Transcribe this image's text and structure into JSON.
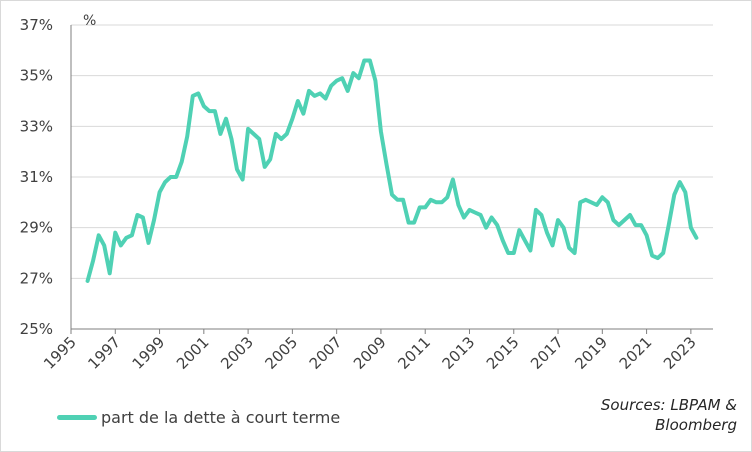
{
  "colors": {
    "series": "#4fd1b4",
    "grid": "#d9d9d9",
    "axis": "#7f7f7f",
    "text": "#404040"
  },
  "chart_data": {
    "type": "line",
    "unit_label": "%",
    "ylim": [
      25,
      37
    ],
    "y_ticks": [
      25,
      27,
      29,
      31,
      33,
      35,
      37
    ],
    "y_tick_labels": [
      "25%",
      "27%",
      "29%",
      "31%",
      "33%",
      "35%",
      "37%"
    ],
    "xlim": [
      1995,
      2024
    ],
    "x_ticks": [
      1995,
      1997,
      1999,
      2001,
      2003,
      2005,
      2007,
      2009,
      2011,
      2013,
      2015,
      2017,
      2019,
      2021,
      2023
    ],
    "x_tick_labels": [
      "1995",
      "1997",
      "1999",
      "2001",
      "2003",
      "2005",
      "2007",
      "2009",
      "2011",
      "2013",
      "2015",
      "2017",
      "2019",
      "2021",
      "2023"
    ],
    "grid": "horizontal",
    "legend": "bottom-left",
    "series": [
      {
        "name": "part de la dette à court terme",
        "x": [
          1995.75,
          1996.0,
          1996.25,
          1996.5,
          1996.75,
          1997.0,
          1997.25,
          1997.5,
          1997.75,
          1998.0,
          1998.25,
          1998.5,
          1998.75,
          1999.0,
          1999.25,
          1999.5,
          1999.75,
          2000.0,
          2000.25,
          2000.5,
          2000.75,
          2001.0,
          2001.25,
          2001.5,
          2001.75,
          2002.0,
          2002.25,
          2002.5,
          2002.75,
          2003.0,
          2003.25,
          2003.5,
          2003.75,
          2004.0,
          2004.25,
          2004.5,
          2004.75,
          2005.0,
          2005.25,
          2005.5,
          2005.75,
          2006.0,
          2006.25,
          2006.5,
          2006.75,
          2007.0,
          2007.25,
          2007.5,
          2007.75,
          2008.0,
          2008.25,
          2008.5,
          2008.75,
          2009.0,
          2009.25,
          2009.5,
          2009.75,
          2010.0,
          2010.25,
          2010.5,
          2010.75,
          2011.0,
          2011.25,
          2011.5,
          2011.75,
          2012.0,
          2012.25,
          2012.5,
          2012.75,
          2013.0,
          2013.25,
          2013.5,
          2013.75,
          2014.0,
          2014.25,
          2014.5,
          2014.75,
          2015.0,
          2015.25,
          2015.5,
          2015.75,
          2016.0,
          2016.25,
          2016.5,
          2016.75,
          2017.0,
          2017.25,
          2017.5,
          2017.75,
          2018.0,
          2018.25,
          2018.5,
          2018.75,
          2019.0,
          2019.25,
          2019.5,
          2019.75,
          2020.0,
          2020.25,
          2020.5,
          2020.75,
          2021.0,
          2021.25,
          2021.5,
          2021.75,
          2022.0,
          2022.25,
          2022.5,
          2022.75,
          2023.0,
          2023.25
        ],
        "values": [
          26.9,
          27.7,
          28.7,
          28.3,
          27.2,
          28.8,
          28.3,
          28.6,
          28.7,
          29.5,
          29.4,
          28.4,
          29.3,
          30.4,
          30.8,
          31.0,
          31.0,
          31.6,
          32.6,
          34.2,
          34.3,
          33.8,
          33.6,
          33.6,
          32.7,
          33.3,
          32.5,
          31.3,
          30.9,
          32.9,
          32.7,
          32.5,
          31.4,
          31.7,
          32.7,
          32.5,
          32.7,
          33.3,
          34.0,
          33.5,
          34.4,
          34.2,
          34.3,
          34.1,
          34.6,
          34.8,
          34.9,
          34.4,
          35.1,
          34.9,
          35.6,
          35.6,
          34.8,
          32.8,
          31.5,
          30.3,
          30.1,
          30.1,
          29.2,
          29.2,
          29.8,
          29.8,
          30.1,
          30.0,
          30.0,
          30.2,
          30.9,
          29.9,
          29.4,
          29.7,
          29.6,
          29.5,
          29.0,
          29.4,
          29.1,
          28.5,
          28.0,
          28.0,
          28.9,
          28.5,
          28.1,
          29.7,
          29.5,
          28.8,
          28.3,
          29.3,
          29.0,
          28.2,
          28.0,
          30.0,
          30.1,
          30.0,
          29.9,
          30.2,
          30.0,
          29.3,
          29.1,
          29.3,
          29.5,
          29.1,
          29.1,
          28.7,
          27.9,
          27.8,
          28.0,
          29.1,
          30.3,
          30.8,
          30.4,
          29.0,
          28.6
        ]
      }
    ]
  },
  "legend": {
    "label": "part de la dette à court terme"
  },
  "source": {
    "line1": "Sources: LBPAM &",
    "line2": "Bloomberg"
  }
}
